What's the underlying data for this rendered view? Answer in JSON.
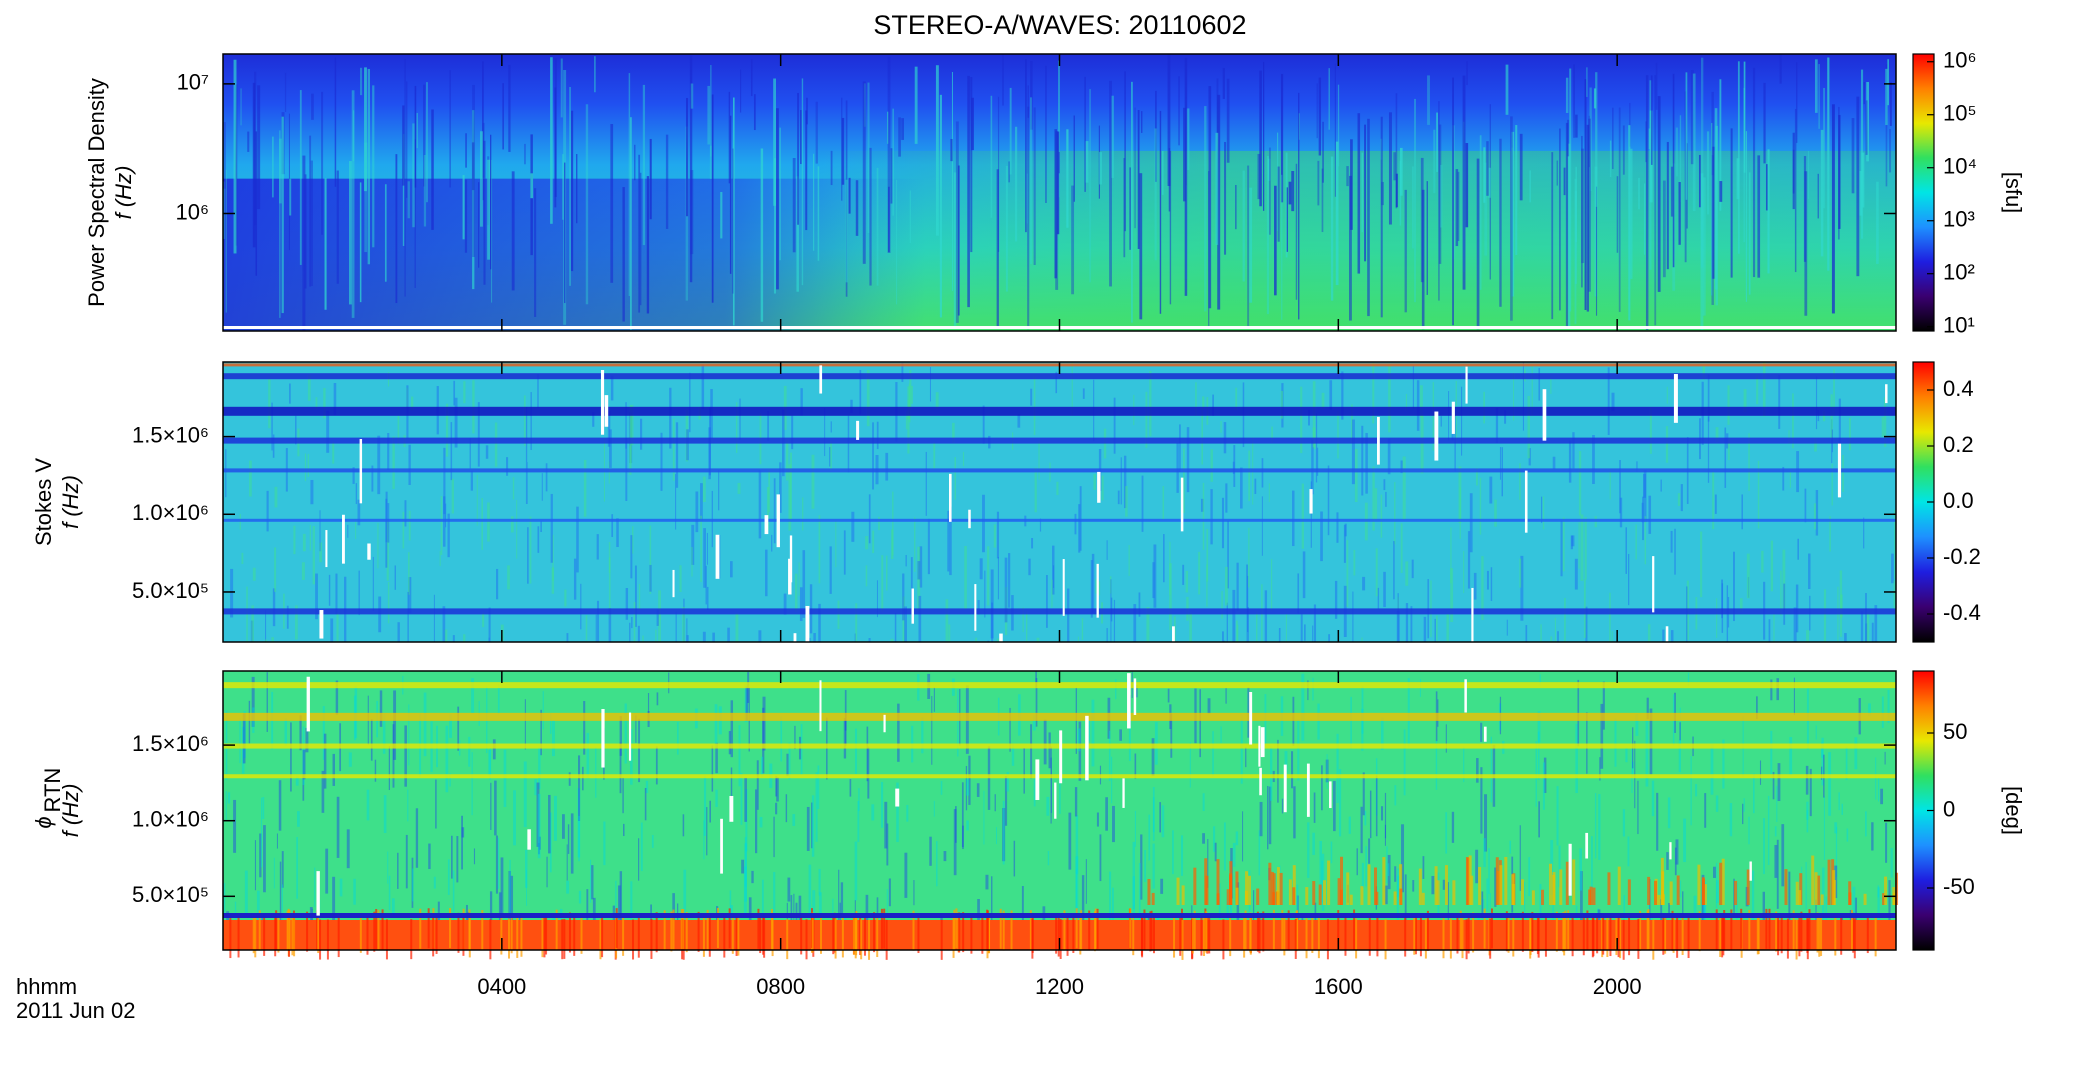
{
  "title": "STEREO-A/WAVES: 20110602",
  "chart_data": [
    {
      "type": "heatmap",
      "ylabel": "Power Spectral Density",
      "ylabel2": "f (Hz)",
      "xlim": [
        0,
        24
      ],
      "ylim": [
        124000,
        17000000
      ],
      "ylog": true,
      "yticks": [
        {
          "value": 1000000,
          "label": "10⁶"
        },
        {
          "value": 10000000,
          "label": "10⁷"
        }
      ],
      "colorbar": {
        "lim": [
          8.3,
          1400000
        ],
        "log": true,
        "label": "[sfu]",
        "ticks": [
          {
            "value": 10,
            "label": "10¹"
          },
          {
            "value": 100,
            "label": "10²"
          },
          {
            "value": 1000,
            "label": "10³"
          },
          {
            "value": 10000,
            "label": "10⁴"
          },
          {
            "value": 100000,
            "label": "10⁵"
          },
          {
            "value": 1000000,
            "label": "10⁶"
          }
        ]
      },
      "colormap": [
        "#000000",
        "#3a0070",
        "#1e1ee0",
        "#1e90ff",
        "#00e5e5",
        "#30e060",
        "#e8e800",
        "#ff8000",
        "#ff0000"
      ]
    },
    {
      "type": "heatmap",
      "ylabel": "Stokes V",
      "ylabel2": "f (Hz)",
      "xlim": [
        0,
        24
      ],
      "ylim": [
        178000,
        1980000
      ],
      "ylog": false,
      "yticks": [
        {
          "value": 500000,
          "label": "5.0×10⁵"
        },
        {
          "value": 1000000,
          "label": "1.0×10⁶"
        },
        {
          "value": 1500000,
          "label": "1.5×10⁶"
        }
      ],
      "colorbar": {
        "lim": [
          -0.5,
          0.5
        ],
        "log": false,
        "ticks": [
          -0.4,
          -0.2,
          {
            "value": 0,
            "label": "0.0"
          },
          0.2,
          0.4
        ]
      },
      "colormap": [
        "#000000",
        "#3a0070",
        "#1e1ee0",
        "#1e90ff",
        "#00e5e5",
        "#30e060",
        "#e8e800",
        "#ff8000",
        "#ff0000"
      ]
    },
    {
      "type": "heatmap",
      "ylabel_symbol": "ϕ",
      "ylabel_subscript": "RTN",
      "ylabel2": "f (Hz)",
      "xlim": [
        0,
        24
      ],
      "ylim": [
        145000,
        1990000
      ],
      "ylog": false,
      "yticks": [
        {
          "value": 500000,
          "label": "5.0×10⁵"
        },
        {
          "value": 1000000,
          "label": "1.0×10⁶"
        },
        {
          "value": 1500000,
          "label": "1.5×10⁶"
        }
      ],
      "colorbar": {
        "lim": [
          -90,
          90
        ],
        "log": false,
        "label": "[deg]",
        "ticks": [
          -50,
          0,
          50
        ]
      },
      "colormap": [
        "#000000",
        "#3a0070",
        "#1e1ee0",
        "#1e90ff",
        "#00e5e5",
        "#30e060",
        "#e8e800",
        "#ff8000",
        "#ff0000"
      ],
      "xlabel": "hhmm",
      "xsublabel": "2011 Jun 02",
      "xticks": [
        {
          "value": 4,
          "label": "0400"
        },
        {
          "value": 8,
          "label": "0800"
        },
        {
          "value": 12,
          "label": "1200"
        },
        {
          "value": 16,
          "label": "1600"
        },
        {
          "value": 20,
          "label": "2000"
        }
      ]
    }
  ]
}
